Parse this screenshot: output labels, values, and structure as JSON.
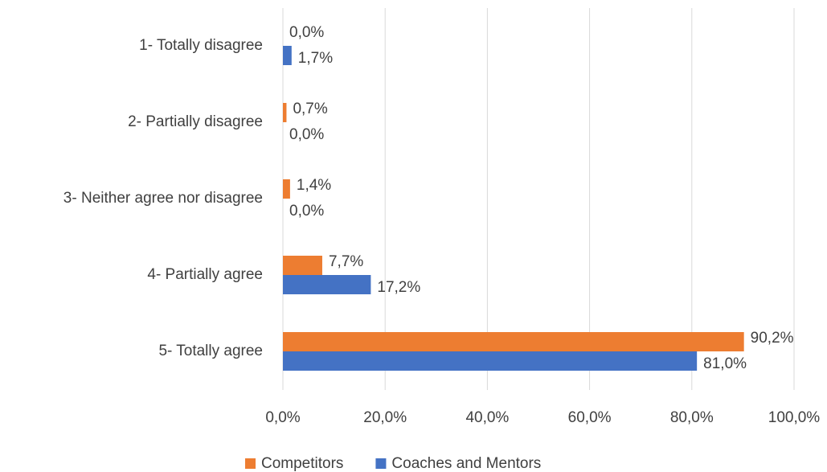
{
  "chart_data": {
    "type": "barh",
    "categories": [
      "1- Totally disagree",
      "2- Partially disagree",
      "3- Neither agree nor disagree",
      "4- Partially agree",
      "5- Totally agree"
    ],
    "series": [
      {
        "name": "Competitors",
        "color": "#ed7d31",
        "values": [
          0.0,
          0.7,
          1.4,
          7.7,
          90.2
        ],
        "value_labels": [
          "0,0%",
          "0,7%",
          "1,4%",
          "7,7%",
          "90,2%"
        ]
      },
      {
        "name": "Coaches and Mentors",
        "color": "#4472c4",
        "values": [
          1.7,
          0.0,
          0.0,
          17.2,
          81.0
        ],
        "value_labels": [
          "1,7%",
          "0,0%",
          "0,0%",
          "17,2%",
          "81,0%"
        ]
      }
    ],
    "xlim": [
      0,
      100
    ],
    "xticks": [
      {
        "value": 0,
        "label": "0,0%"
      },
      {
        "value": 20,
        "label": "20,0%"
      },
      {
        "value": 40,
        "label": "40,0%"
      },
      {
        "value": 60,
        "label": "60,0%"
      },
      {
        "value": 80,
        "label": "80,0%"
      },
      {
        "value": 100,
        "label": "100,0%"
      }
    ],
    "grid": true,
    "legend": "bottom"
  }
}
